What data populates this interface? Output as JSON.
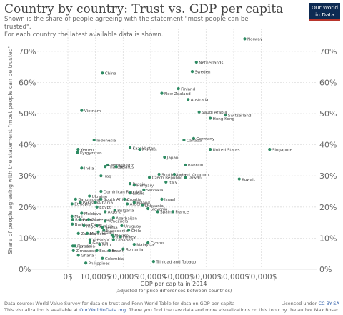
{
  "header": {
    "title": "Country by country: Trust vs. GDP per capita",
    "subtitle_line1": "Shown is the share of people agreeing with the statement \"most people can be trusted\".",
    "subtitle_line2": "For each country the latest available data is shown."
  },
  "logo": {
    "line1": "Our World",
    "line2": "in Data"
  },
  "footer": {
    "source": "Data source: World Value Survey for data on trust and Penn World Table for data on GDP per capita",
    "available_prefix": "This visualization is available at ",
    "available_link": "OurWorldInData.org",
    "available_suffix": ". There you find the raw data and more visualizations on this topic.",
    "license_prefix": "Licensed under ",
    "license_link": "CC-BY-SA",
    "author": "by the author Max Roser."
  },
  "colors": {
    "point": "#2e8b63",
    "grid": "#dddddd",
    "text": "#555555"
  },
  "chart_data": {
    "type": "scatter",
    "xlabel": "GDP per capita in 2014",
    "xlabel_note": "(adjusted for price differences between countries)",
    "ylabel": "Share of people agreeing with the statement \"most people can be trusted\"",
    "xlim": [
      0,
      75000
    ],
    "ylim": [
      0,
      75
    ],
    "x_ticks": [
      0,
      10000,
      20000,
      30000,
      40000,
      50000,
      60000,
      70000
    ],
    "x_tick_labels": [
      "0$",
      "10,000$",
      "20,000$",
      "30,000$",
      "40,000$",
      "50,000$",
      "60,000$",
      "70,000$"
    ],
    "y_ticks": [
      0,
      10,
      20,
      30,
      40,
      50,
      60,
      70
    ],
    "y_tick_labels": [
      "0%",
      "10%",
      "20%",
      "30%",
      "40%",
      "50%",
      "60%",
      "70%"
    ],
    "grid": true,
    "points": [
      {
        "name": "Norway",
        "x": 64000,
        "y": 74
      },
      {
        "name": "Netherlands",
        "x": 46500,
        "y": 66.5
      },
      {
        "name": "Sweden",
        "x": 45000,
        "y": 63.5
      },
      {
        "name": "China",
        "x": 12500,
        "y": 63
      },
      {
        "name": "Finland",
        "x": 40000,
        "y": 58
      },
      {
        "name": "New Zealand",
        "x": 34000,
        "y": 56.5
      },
      {
        "name": "Australia",
        "x": 43500,
        "y": 54.5
      },
      {
        "name": "Vietnam",
        "x": 5000,
        "y": 51
      },
      {
        "name": "Saudi Arabia",
        "x": 47500,
        "y": 50.5
      },
      {
        "name": "Switzerland",
        "x": 57000,
        "y": 49.5
      },
      {
        "name": "Hong Kong",
        "x": 51500,
        "y": 48.5
      },
      {
        "name": "Germany",
        "x": 45500,
        "y": 42
      },
      {
        "name": "Indonesia",
        "x": 9500,
        "y": 41.5
      },
      {
        "name": "Canada",
        "x": 42000,
        "y": 41.5
      },
      {
        "name": "Kazakhstan",
        "x": 22500,
        "y": 39
      },
      {
        "name": "Estonia",
        "x": 26000,
        "y": 38.5
      },
      {
        "name": "Yemen",
        "x": 3700,
        "y": 38.5
      },
      {
        "name": "United States",
        "x": 51500,
        "y": 38.5
      },
      {
        "name": "Singapore",
        "x": 73000,
        "y": 38.5
      },
      {
        "name": "Kyrgyzstan",
        "x": 3500,
        "y": 37.5
      },
      {
        "name": "Japan",
        "x": 35000,
        "y": 36
      },
      {
        "name": "Bahrain",
        "x": 42500,
        "y": 33.5
      },
      {
        "name": "Montenegro",
        "x": 14500,
        "y": 33.5
      },
      {
        "name": "Thailand",
        "x": 13500,
        "y": 33
      },
      {
        "name": "Belarus",
        "x": 17500,
        "y": 33
      },
      {
        "name": "India",
        "x": 5000,
        "y": 32.5
      },
      {
        "name": "South Korea",
        "x": 33000,
        "y": 30.5
      },
      {
        "name": "United Kingdom",
        "x": 38500,
        "y": 30.5
      },
      {
        "name": "Czech Republic",
        "x": 29500,
        "y": 29.5
      },
      {
        "name": "Iraq",
        "x": 12000,
        "y": 30
      },
      {
        "name": "Taiwan",
        "x": 42500,
        "y": 29.5
      },
      {
        "name": "Kuwait",
        "x": 62000,
        "y": 29
      },
      {
        "name": "Italy",
        "x": 35500,
        "y": 28
      },
      {
        "name": "Russia",
        "x": 22500,
        "y": 27.5
      },
      {
        "name": "Hungary",
        "x": 24000,
        "y": 27
      },
      {
        "name": "Dominican Republic",
        "x": 12000,
        "y": 25
      },
      {
        "name": "Slovakia",
        "x": 27500,
        "y": 25.5
      },
      {
        "name": "Latvia",
        "x": 22500,
        "y": 24.5
      },
      {
        "name": "Bangladesh",
        "x": 2800,
        "y": 22.5
      },
      {
        "name": "Ukraine",
        "x": 7800,
        "y": 23.5
      },
      {
        "name": "South Africa",
        "x": 12000,
        "y": 22.5
      },
      {
        "name": "Croatia",
        "x": 20500,
        "y": 22.5
      },
      {
        "name": "Israel",
        "x": 34000,
        "y": 22.5
      },
      {
        "name": "Pakistan",
        "x": 4500,
        "y": 21.5
      },
      {
        "name": "Albania",
        "x": 10000,
        "y": 21.5
      },
      {
        "name": "Ethiopia",
        "x": 1500,
        "y": 21
      },
      {
        "name": "Argentina",
        "x": 21500,
        "y": 21
      },
      {
        "name": "Poland",
        "x": 24000,
        "y": 21.5
      },
      {
        "name": "Lithuania",
        "x": 27000,
        "y": 20.5
      },
      {
        "name": "Egypt",
        "x": 10500,
        "y": 20
      },
      {
        "name": "Slovenia",
        "x": 29000,
        "y": 19.5
      },
      {
        "name": "Bulgaria",
        "x": 17000,
        "y": 19
      },
      {
        "name": "Spain",
        "x": 32500,
        "y": 18.5
      },
      {
        "name": "France",
        "x": 38000,
        "y": 18.5
      },
      {
        "name": "Algeria",
        "x": 13500,
        "y": 18.5
      },
      {
        "name": "Moldova",
        "x": 5000,
        "y": 18
      },
      {
        "name": "Mali",
        "x": 1500,
        "y": 17
      },
      {
        "name": "Azerbaijan",
        "x": 16500,
        "y": 16.5
      },
      {
        "name": "Rwanda",
        "x": 1700,
        "y": 16
      },
      {
        "name": "Palestine",
        "x": 4500,
        "y": 16
      },
      {
        "name": "Guatemala",
        "x": 7500,
        "y": 16
      },
      {
        "name": "Venezuela",
        "x": 13500,
        "y": 15.5
      },
      {
        "name": "Burkina Faso",
        "x": 1600,
        "y": 14.5
      },
      {
        "name": "Nigeria",
        "x": 5800,
        "y": 14
      },
      {
        "name": "Tunisia",
        "x": 10500,
        "y": 14
      },
      {
        "name": "Uruguay",
        "x": 19500,
        "y": 14
      },
      {
        "name": "Serbia",
        "x": 12500,
        "y": 13.5
      },
      {
        "name": "Chile",
        "x": 22000,
        "y": 12.5
      },
      {
        "name": "Zambia",
        "x": 3800,
        "y": 11.5
      },
      {
        "name": "Jordan",
        "x": 11000,
        "y": 12
      },
      {
        "name": "Macedonia",
        "x": 13000,
        "y": 12.5
      },
      {
        "name": "Morocco",
        "x": 7000,
        "y": 11.5
      },
      {
        "name": "Mexico",
        "x": 16000,
        "y": 11
      },
      {
        "name": "Iran",
        "x": 16500,
        "y": 10.5
      },
      {
        "name": "Turkey",
        "x": 19000,
        "y": 10.5
      },
      {
        "name": "Armenia",
        "x": 8000,
        "y": 9.5
      },
      {
        "name": "Lebanon",
        "x": 16500,
        "y": 9.5
      },
      {
        "name": "Georgia",
        "x": 8000,
        "y": 8.5
      },
      {
        "name": "Malaysia",
        "x": 24000,
        "y": 8
      },
      {
        "name": "Cyprus",
        "x": 29000,
        "y": 8.5
      },
      {
        "name": "Peru",
        "x": 11500,
        "y": 8
      },
      {
        "name": "Uganda",
        "x": 1800,
        "y": 7.5
      },
      {
        "name": "Tanzania",
        "x": 2600,
        "y": 7.5
      },
      {
        "name": "Romania",
        "x": 20000,
        "y": 6.5
      },
      {
        "name": "Zimbabwe",
        "x": 2000,
        "y": 6
      },
      {
        "name": "Ecuador",
        "x": 10500,
        "y": 6
      },
      {
        "name": "Brazil",
        "x": 15000,
        "y": 6
      },
      {
        "name": "Ghana",
        "x": 3800,
        "y": 4.5
      },
      {
        "name": "Colombia",
        "x": 12500,
        "y": 3.5
      },
      {
        "name": "Trinidad and Tobago",
        "x": 31000,
        "y": 2.5
      },
      {
        "name": "Philippines",
        "x": 6500,
        "y": 2
      }
    ]
  }
}
